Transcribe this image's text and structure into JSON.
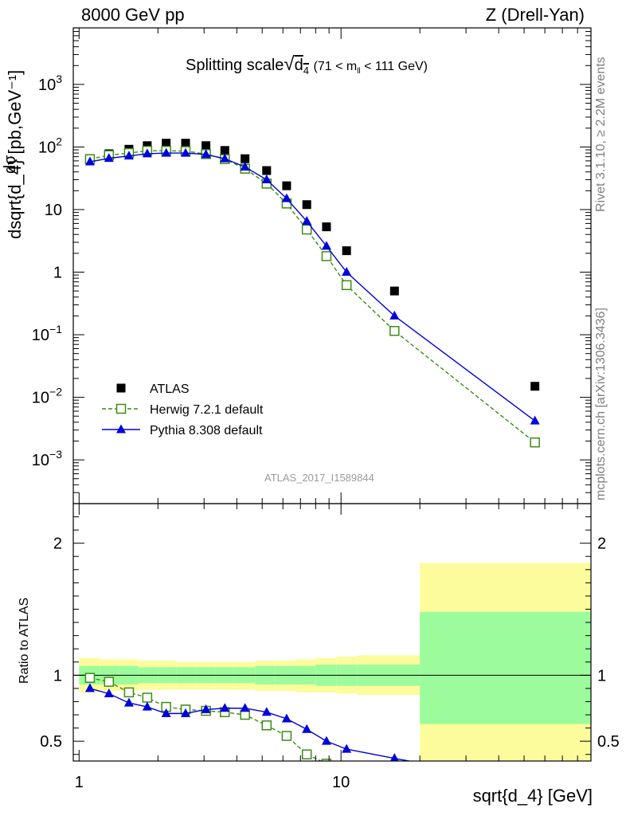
{
  "header": {
    "left": "8000 GeV pp",
    "right": "Z (Drell-Yan)"
  },
  "side_labels": {
    "rivet": "Rivet 3.1.10, ≥ 2.2M events",
    "mcplots": "mcplots.cern.ch [arXiv:1306.3436]"
  },
  "analysis_id": "ATLAS_2017_I1589844",
  "colors": {
    "atlas": "#000000",
    "herwig": "#3c8c14",
    "pythia": "#0000dd",
    "band_inner": "#9cfc9c",
    "band_outer": "#fcfc9c",
    "side_text": "#7f7f7f"
  },
  "chart_data": [
    {
      "type": "scatter",
      "panel": "main",
      "title": "Splitting scale √d4 (71 < m_ll < 111 GeV)",
      "title_parts": {
        "prefix": "Splitting scale",
        "sub": "4",
        "suffix": "(71 < m",
        "suffix_sub": "ll",
        "suffix_end": "< 111 GeV)"
      },
      "ylabel": "dσ / dsqrt{d_4} [pb,GeV⁻¹]",
      "ylabel_parts": {
        "numerator": "dσ",
        "denominator": "dsqrt{d_4}",
        "unit": "[pb,GeV⁻¹]"
      },
      "xscale": "log",
      "yscale": "log",
      "xlim": [
        0.95,
        90
      ],
      "ylim": [
        0.0002,
        8000
      ],
      "ytick_labels": [
        "10^-3",
        "10^-2",
        "10^-1",
        "1",
        "10",
        "10^2",
        "10^3"
      ],
      "legend_placement": "bottom-left",
      "series": [
        {
          "name": "ATLAS",
          "style": "square-filled",
          "x": [
            1.1,
            1.3,
            1.55,
            1.82,
            2.15,
            2.55,
            3.05,
            3.6,
            4.3,
            5.2,
            6.2,
            7.4,
            8.8,
            10.5,
            16.0,
            55.0
          ],
          "y": [
            65,
            78,
            92,
            105,
            115,
            115,
            105,
            88,
            65,
            42,
            24,
            12,
            5.3,
            2.2,
            0.5,
            0.015
          ]
        },
        {
          "name": "Herwig 7.2.1 default",
          "style": "square-open-dashed",
          "x": [
            1.1,
            1.3,
            1.55,
            1.82,
            2.15,
            2.55,
            3.05,
            3.6,
            4.3,
            5.2,
            6.2,
            7.4,
            8.8,
            10.5,
            16.0,
            55.0
          ],
          "y": [
            64,
            74,
            80,
            87,
            87,
            86,
            77,
            64,
            45,
            26,
            12.5,
            4.8,
            1.8,
            0.62,
            0.115,
            0.0019
          ]
        },
        {
          "name": "Pythia 8.308 default",
          "style": "triangle-filled-solid",
          "x": [
            1.1,
            1.3,
            1.55,
            1.82,
            2.15,
            2.55,
            3.05,
            3.6,
            4.3,
            5.2,
            6.2,
            7.4,
            8.8,
            10.5,
            16.0,
            55.0
          ],
          "y": [
            58,
            66,
            72,
            78,
            80,
            80,
            76,
            65,
            48,
            30,
            15,
            6.5,
            2.6,
            1.0,
            0.2,
            0.0042
          ]
        }
      ]
    },
    {
      "type": "line",
      "panel": "ratio",
      "ylabel": "Ratio to ATLAS",
      "xlabel": "sqrt{d_4} [GeV]",
      "xscale": "log",
      "xlim": [
        0.95,
        90
      ],
      "ylim": [
        0.35,
        2.3
      ],
      "ytick_labels": [
        "0.5",
        "1",
        "2"
      ],
      "xtick_labels": [
        "1",
        "10"
      ],
      "reference_line": 1,
      "bands": {
        "edges": [
          1.0,
          1.2,
          1.42,
          1.68,
          2.0,
          2.35,
          2.78,
          3.3,
          3.9,
          4.7,
          5.6,
          6.7,
          8.0,
          9.6,
          11.5,
          20.0,
          90.0
        ],
        "outer_lo": [
          0.87,
          0.88,
          0.88,
          0.89,
          0.89,
          0.89,
          0.89,
          0.89,
          0.89,
          0.88,
          0.88,
          0.87,
          0.87,
          0.86,
          0.85,
          0.35
        ],
        "outer_hi": [
          1.13,
          1.12,
          1.12,
          1.11,
          1.11,
          1.1,
          1.1,
          1.1,
          1.1,
          1.11,
          1.11,
          1.12,
          1.13,
          1.14,
          1.15,
          1.85
        ],
        "inner_lo": [
          0.93,
          0.93,
          0.93,
          0.94,
          0.94,
          0.94,
          0.94,
          0.94,
          0.94,
          0.93,
          0.93,
          0.93,
          0.92,
          0.92,
          0.92,
          0.63
        ],
        "inner_hi": [
          1.07,
          1.07,
          1.07,
          1.06,
          1.06,
          1.06,
          1.06,
          1.06,
          1.06,
          1.07,
          1.07,
          1.07,
          1.08,
          1.08,
          1.08,
          1.48
        ]
      },
      "series": [
        {
          "name": "Herwig 7.2.1 default",
          "style": "square-open-dashed",
          "x": [
            1.1,
            1.3,
            1.55,
            1.82,
            2.15,
            2.55,
            3.05,
            3.6,
            4.3,
            5.2,
            6.2,
            7.4,
            8.8
          ],
          "y": [
            0.98,
            0.95,
            0.87,
            0.83,
            0.76,
            0.74,
            0.73,
            0.72,
            0.7,
            0.62,
            0.54,
            0.4,
            0.33
          ]
        },
        {
          "name": "Pythia 8.308 default",
          "style": "triangle-filled-solid",
          "x": [
            1.1,
            1.3,
            1.55,
            1.82,
            2.15,
            2.55,
            3.05,
            3.6,
            4.3,
            5.2,
            6.2,
            7.4,
            8.8,
            10.5,
            16.0,
            25.0
          ],
          "y": [
            0.9,
            0.86,
            0.79,
            0.76,
            0.71,
            0.71,
            0.74,
            0.75,
            0.75,
            0.72,
            0.67,
            0.59,
            0.5,
            0.44,
            0.37,
            0.3
          ]
        }
      ]
    }
  ]
}
